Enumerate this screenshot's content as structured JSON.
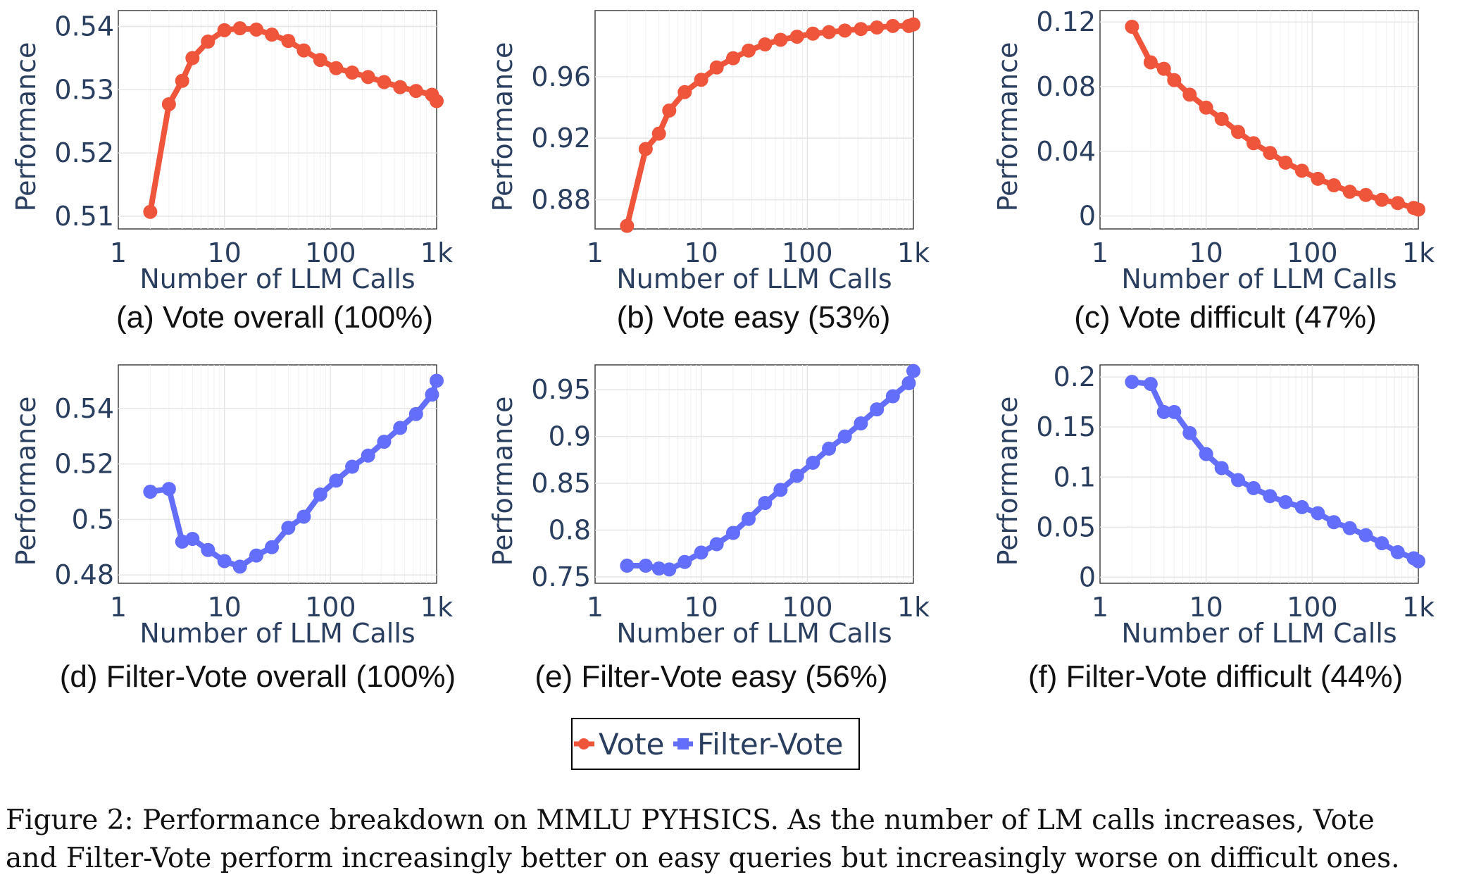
{
  "colors": {
    "vote": "#ef553b",
    "filter_vote": "#636efa",
    "axis_text": "#2a3f5f",
    "grid": "#e6e6e6"
  },
  "legend": {
    "items": [
      "Vote",
      "Filter-Vote"
    ]
  },
  "caption": {
    "line1": "Figure 2: Performance breakdown on MMLU PYHSICS. As the number of LM calls increases, Vote",
    "line2": "and Filter-Vote perform increasingly better on easy queries but increasingly worse on difficult ones."
  },
  "chart_data": [
    {
      "type": "line",
      "subcaption": "(a) Vote overall (100%)",
      "series_name": "Vote",
      "xlabel": "Number of LLM Calls",
      "ylabel": "Performance",
      "xscale": "log",
      "xlim": [
        1,
        1000
      ],
      "ylim": [
        0.508,
        0.5425
      ],
      "xticks": [
        1,
        10,
        100,
        1000
      ],
      "xtick_labels": [
        "1",
        "10",
        "100",
        "1k"
      ],
      "yticks": [
        0.51,
        0.52,
        0.53,
        0.54
      ],
      "ytick_labels": [
        "0.51",
        "0.52",
        "0.53",
        "0.54"
      ],
      "x": [
        2,
        3,
        4,
        5,
        7,
        10,
        14,
        20,
        28,
        40,
        56,
        80,
        113,
        160,
        226,
        320,
        453,
        640,
        905,
        1000
      ],
      "y": [
        0.5107,
        0.5277,
        0.5314,
        0.535,
        0.5376,
        0.5394,
        0.5397,
        0.5395,
        0.5387,
        0.5377,
        0.5362,
        0.5347,
        0.5334,
        0.5327,
        0.532,
        0.5312,
        0.5304,
        0.5298,
        0.5292,
        0.5282
      ]
    },
    {
      "type": "line",
      "subcaption": "(b) Vote easy (53%)",
      "series_name": "Vote",
      "xlabel": "Number of LLM Calls",
      "ylabel": "Performance",
      "xscale": "log",
      "xlim": [
        1,
        1000
      ],
      "ylim": [
        0.861,
        1.003
      ],
      "xticks": [
        1,
        10,
        100,
        1000
      ],
      "xtick_labels": [
        "1",
        "10",
        "100",
        "1k"
      ],
      "yticks": [
        0.88,
        0.92,
        0.96
      ],
      "ytick_labels": [
        "0.88",
        "0.92",
        "0.96"
      ],
      "x": [
        2,
        3,
        4,
        5,
        7,
        10,
        14,
        20,
        28,
        40,
        56,
        80,
        113,
        160,
        226,
        320,
        453,
        640,
        905,
        1000
      ],
      "y": [
        0.863,
        0.913,
        0.923,
        0.938,
        0.95,
        0.958,
        0.966,
        0.972,
        0.977,
        0.981,
        0.984,
        0.986,
        0.988,
        0.989,
        0.99,
        0.991,
        0.992,
        0.993,
        0.993,
        0.994
      ]
    },
    {
      "type": "line",
      "subcaption": "(c) Vote difficult (47%)",
      "series_name": "Vote",
      "xlabel": "Number of LLM Calls",
      "ylabel": "Performance",
      "xscale": "log",
      "xlim": [
        1,
        1000
      ],
      "ylim": [
        -0.008,
        0.127
      ],
      "xticks": [
        1,
        10,
        100,
        1000
      ],
      "xtick_labels": [
        "1",
        "10",
        "100",
        "1k"
      ],
      "yticks": [
        0,
        0.04,
        0.08,
        0.12
      ],
      "ytick_labels": [
        "0",
        "0.04",
        "0.08",
        "0.12"
      ],
      "x": [
        2,
        3,
        4,
        5,
        7,
        10,
        14,
        20,
        28,
        40,
        56,
        80,
        113,
        160,
        226,
        320,
        453,
        640,
        905,
        1000
      ],
      "y": [
        0.117,
        0.095,
        0.091,
        0.084,
        0.075,
        0.067,
        0.06,
        0.052,
        0.045,
        0.039,
        0.033,
        0.028,
        0.023,
        0.019,
        0.015,
        0.013,
        0.01,
        0.008,
        0.005,
        0.004
      ]
    },
    {
      "type": "line",
      "subcaption": "(d) Filter-Vote overall (100%)",
      "series_name": "Filter-Vote",
      "xlabel": "Number of LLM Calls",
      "ylabel": "Performance",
      "xscale": "log",
      "xlim": [
        1,
        1000
      ],
      "ylim": [
        0.477,
        0.5557
      ],
      "xticks": [
        1,
        10,
        100,
        1000
      ],
      "xtick_labels": [
        "1",
        "10",
        "100",
        "1k"
      ],
      "yticks": [
        0.48,
        0.5,
        0.52,
        0.54
      ],
      "ytick_labels": [
        "0.48",
        "0.5",
        "0.52",
        "0.54"
      ],
      "x": [
        2,
        3,
        4,
        5,
        7,
        10,
        14,
        20,
        28,
        40,
        56,
        80,
        113,
        160,
        226,
        320,
        453,
        640,
        905,
        1000
      ],
      "y": [
        0.51,
        0.511,
        0.492,
        0.493,
        0.489,
        0.485,
        0.483,
        0.487,
        0.49,
        0.497,
        0.501,
        0.509,
        0.514,
        0.519,
        0.523,
        0.528,
        0.533,
        0.538,
        0.545,
        0.55
      ]
    },
    {
      "type": "line",
      "subcaption": "(e) Filter-Vote easy (56%)",
      "series_name": "Filter-Vote",
      "xlabel": "Number of LLM Calls",
      "ylabel": "Performance",
      "xscale": "log",
      "xlim": [
        1,
        1000
      ],
      "ylim": [
        0.7432,
        0.9765
      ],
      "xticks": [
        1,
        10,
        100,
        1000
      ],
      "xtick_labels": [
        "1",
        "10",
        "100",
        "1k"
      ],
      "yticks": [
        0.75,
        0.8,
        0.85,
        0.9,
        0.95
      ],
      "ytick_labels": [
        "0.75",
        "0.8",
        "0.85",
        "0.9",
        "0.95"
      ],
      "x": [
        2,
        3,
        4,
        5,
        7,
        10,
        14,
        20,
        28,
        40,
        56,
        80,
        113,
        160,
        226,
        320,
        453,
        640,
        905,
        1000
      ],
      "y": [
        0.762,
        0.762,
        0.759,
        0.758,
        0.766,
        0.776,
        0.785,
        0.797,
        0.812,
        0.829,
        0.843,
        0.858,
        0.872,
        0.887,
        0.9,
        0.914,
        0.929,
        0.943,
        0.957,
        0.97
      ]
    },
    {
      "type": "line",
      "subcaption": "(f) Filter-Vote difficult (44%)",
      "series_name": "Filter-Vote",
      "xlabel": "Number of LLM Calls",
      "ylabel": "Performance",
      "xscale": "log",
      "xlim": [
        1,
        1000
      ],
      "ylim": [
        -0.006,
        0.212
      ],
      "xticks": [
        1,
        10,
        100,
        1000
      ],
      "xtick_labels": [
        "1",
        "10",
        "100",
        "1k"
      ],
      "yticks": [
        0,
        0.05,
        0.1,
        0.15,
        0.2
      ],
      "ytick_labels": [
        "0",
        "0.05",
        "0.1",
        "0.15",
        "0.2"
      ],
      "x": [
        2,
        3,
        4,
        5,
        7,
        10,
        14,
        20,
        28,
        40,
        56,
        80,
        113,
        160,
        226,
        320,
        453,
        640,
        905,
        1000
      ],
      "y": [
        0.195,
        0.193,
        0.165,
        0.165,
        0.144,
        0.123,
        0.109,
        0.097,
        0.089,
        0.081,
        0.075,
        0.07,
        0.064,
        0.055,
        0.049,
        0.042,
        0.034,
        0.025,
        0.019,
        0.016
      ]
    }
  ]
}
